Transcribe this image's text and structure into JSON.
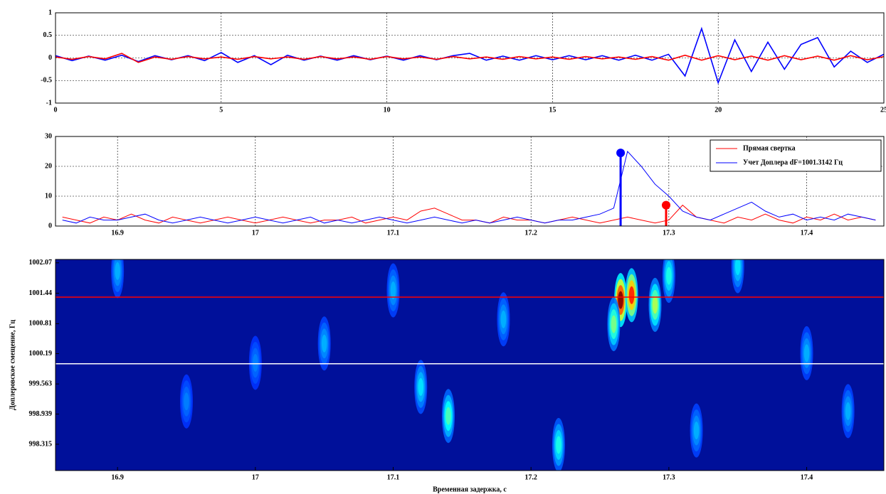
{
  "chart_data": [
    {
      "type": "line",
      "x": [
        0,
        0.5,
        1,
        1.5,
        2,
        2.5,
        3,
        3.5,
        4,
        4.5,
        5,
        5.5,
        6,
        6.5,
        7,
        7.5,
        8,
        8.5,
        9,
        9.5,
        10,
        10.5,
        11,
        11.5,
        12,
        12.5,
        13,
        13.5,
        14,
        14.5,
        15,
        15.5,
        16,
        16.5,
        17,
        17.5,
        18,
        18.5,
        19,
        19.5,
        20,
        20.5,
        21,
        21.5,
        22,
        22.5,
        23,
        23.5,
        24,
        24.5,
        25
      ],
      "series": [
        {
          "color": "#0000ff",
          "values": [
            0.05,
            -0.06,
            0.04,
            -0.05,
            0.06,
            -0.08,
            0.05,
            -0.04,
            0.05,
            -0.06,
            0.12,
            -0.1,
            0.05,
            -0.15,
            0.06,
            -0.05,
            0.04,
            -0.05,
            0.05,
            -0.04,
            0.04,
            -0.05,
            0.05,
            -0.04,
            0.05,
            0.1,
            -0.05,
            0.04,
            -0.05,
            0.05,
            -0.04,
            0.05,
            -0.04,
            0.05,
            -0.05,
            0.06,
            -0.05,
            0.08,
            -0.4,
            0.65,
            -0.55,
            0.4,
            -0.3,
            0.35,
            -0.25,
            0.3,
            0.45,
            -0.2,
            0.15,
            -0.1,
            0.08
          ]
        },
        {
          "color": "#ff0000",
          "values": [
            0.02,
            -0.03,
            0.03,
            -0.02,
            0.1,
            -0.1,
            0.02,
            -0.03,
            0.03,
            -0.02,
            0.02,
            -0.03,
            0.03,
            -0.02,
            0.02,
            -0.03,
            0.03,
            -0.02,
            0.02,
            -0.03,
            0.03,
            -0.02,
            0.02,
            -0.03,
            0.03,
            -0.02,
            0.02,
            -0.03,
            0.03,
            -0.02,
            0.02,
            -0.03,
            0.03,
            -0.02,
            0.02,
            -0.03,
            0.03,
            -0.05,
            0.06,
            -0.05,
            0.05,
            -0.04,
            0.04,
            -0.05,
            0.05,
            -0.04,
            0.04,
            -0.05,
            0.05,
            -0.04,
            0.03
          ]
        }
      ],
      "xlim": [
        0,
        25
      ],
      "xticks": [
        0,
        5,
        10,
        15,
        20,
        25
      ],
      "ylim": [
        -1,
        1
      ],
      "yticks": [
        -1,
        -0.5,
        0,
        0.5,
        1
      ],
      "grid": true
    },
    {
      "type": "line",
      "x": [
        16.86,
        16.87,
        16.88,
        16.89,
        16.9,
        16.91,
        16.92,
        16.93,
        16.94,
        16.95,
        16.96,
        16.97,
        16.98,
        16.99,
        17,
        17.01,
        17.02,
        17.03,
        17.04,
        17.05,
        17.06,
        17.07,
        17.08,
        17.09,
        17.1,
        17.11,
        17.12,
        17.13,
        17.14,
        17.15,
        17.16,
        17.17,
        17.18,
        17.19,
        17.2,
        17.21,
        17.22,
        17.23,
        17.24,
        17.25,
        17.26,
        17.27,
        17.28,
        17.29,
        17.3,
        17.31,
        17.32,
        17.33,
        17.34,
        17.35,
        17.36,
        17.37,
        17.38,
        17.39,
        17.4,
        17.41,
        17.42,
        17.43,
        17.44,
        17.45
      ],
      "series": [
        {
          "name": "Прямая свертка",
          "color": "#ff0000",
          "values": [
            3,
            2,
            1,
            3,
            2,
            4,
            2,
            1,
            3,
            2,
            1,
            2,
            3,
            2,
            1,
            2,
            3,
            2,
            1,
            2,
            2,
            3,
            1,
            2,
            3,
            2,
            5,
            6,
            4,
            2,
            2,
            1,
            3,
            2,
            2,
            1,
            2,
            3,
            2,
            1,
            2,
            3,
            2,
            1,
            2,
            7,
            3,
            2,
            1,
            3,
            2,
            4,
            2,
            1,
            3,
            2,
            4,
            2,
            3,
            2
          ]
        },
        {
          "name": "Учет Доплера dF=1001.3142 Гц",
          "color": "#0000ff",
          "values": [
            2,
            1,
            3,
            2,
            2,
            3,
            4,
            2,
            1,
            2,
            3,
            2,
            1,
            2,
            3,
            2,
            1,
            2,
            3,
            1,
            2,
            1,
            2,
            3,
            2,
            1,
            2,
            3,
            2,
            1,
            2,
            1,
            2,
            3,
            2,
            1,
            2,
            2,
            3,
            4,
            6,
            25,
            20,
            14,
            10,
            5,
            3,
            2,
            4,
            6,
            8,
            5,
            3,
            4,
            2,
            3,
            2,
            4,
            3,
            2
          ]
        }
      ],
      "stems": [
        {
          "x": 17.265,
          "value": 24.5,
          "color": "#0000ff"
        },
        {
          "x": 17.298,
          "value": 7,
          "color": "#ff0000"
        }
      ],
      "xlim": [
        16.855,
        17.456
      ],
      "xticks": [
        16.9,
        17,
        17.1,
        17.2,
        17.3,
        17.4
      ],
      "ylim": [
        0,
        30
      ],
      "yticks": [
        0,
        10,
        20,
        30
      ],
      "grid": true,
      "legend": "northeast"
    },
    {
      "type": "heatmap",
      "x": [
        17.265,
        17.273,
        17.29,
        17.26,
        17.14,
        17.12,
        17.22,
        17.35,
        17.3,
        17.05,
        16.95,
        17.18,
        16.9,
        17.4,
        17.1,
        17.32,
        17.0,
        17.43
      ],
      "y": [
        1001.3,
        1001.4,
        1001.2,
        1000.8,
        998.9,
        999.5,
        998.3,
        1002.0,
        1001.8,
        1000.4,
        999.2,
        1000.9,
        1001.9,
        1000.2,
        1001.5,
        998.6,
        1000.0,
        999.0
      ],
      "values": [
        1.0,
        0.85,
        0.55,
        0.5,
        0.45,
        0.35,
        0.4,
        0.35,
        0.4,
        0.3,
        0.25,
        0.3,
        0.3,
        0.3,
        0.3,
        0.3,
        0.25,
        0.3
      ],
      "clim": [
        0,
        1
      ],
      "background": "#00109a",
      "hlines": [
        {
          "value": 1001.36,
          "color": "#ff0000"
        },
        {
          "value": 999.98,
          "color": "#ffffff"
        }
      ],
      "xlim": [
        16.855,
        17.456
      ],
      "xticks": [
        16.9,
        17,
        17.1,
        17.2,
        17.3,
        17.4
      ],
      "ylim": [
        997.77,
        1002.14
      ],
      "yticks": [
        998.315,
        998.939,
        999.563,
        1000.19,
        1000.81,
        1001.44,
        1002.07
      ],
      "grid": false,
      "xlabel": "Временная задержка, с",
      "ylabel": "Доплеровское смещение, Гц"
    }
  ]
}
